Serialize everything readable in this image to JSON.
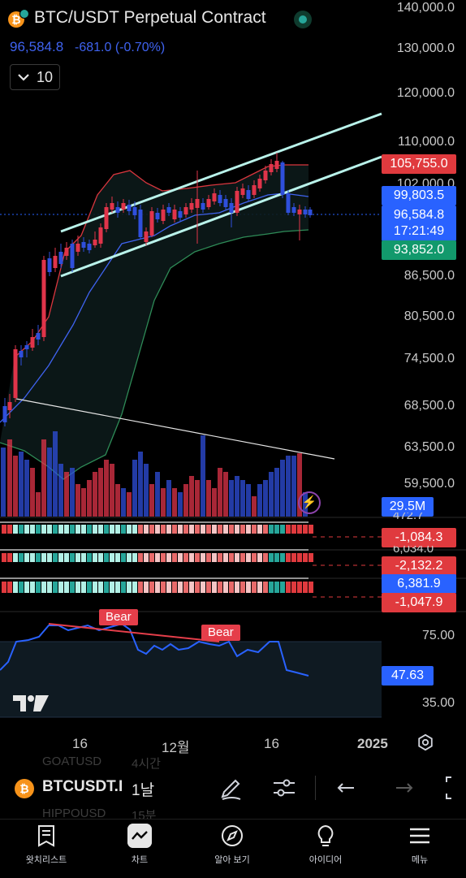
{
  "header": {
    "title": "BTC/USDT Perpetual Contract",
    "price": "96,584.8",
    "change": "-681.0 (-0.70%)",
    "collapse_count": "10"
  },
  "price_axis": [
    "140,000.0",
    "130,000.0",
    "120,000.0",
    "110,000.0",
    "102,000.0",
    "86,500.0",
    "80,500.0",
    "74,500.0",
    "68,500.0",
    "63,500.0",
    "59,500.0"
  ],
  "price_tags": {
    "upper_band": "105,755.0",
    "mid_band": "99,803.5",
    "last_price": "96,584.8",
    "countdown": "17:21:49",
    "lower_band": "93,852.0",
    "volume": "29.5M"
  },
  "oscillators": {
    "osc1": {
      "top": "472.7",
      "value": "-1,084.3"
    },
    "osc2": {
      "top": "6,034.0",
      "value": "-2,132.2"
    },
    "osc3": {
      "top": "6,381.9",
      "value": "-1,047.9"
    }
  },
  "rsi": {
    "levels": [
      "75.00",
      "35.00"
    ],
    "value": "47.63",
    "labels": [
      "Bear",
      "Bear"
    ]
  },
  "time_axis": [
    "16",
    "12월",
    "16",
    "2025"
  ],
  "ghost_list": [
    "GOATUSD",
    "4시간",
    "HIPPOUSD",
    "15분"
  ],
  "toolbar": {
    "symbol": "BTCUSDT.I",
    "interval": "1날"
  },
  "nav": [
    {
      "label": "왓치리스트",
      "icon": "watchlist-icon"
    },
    {
      "label": "차트",
      "icon": "chart-icon"
    },
    {
      "label": "알아 보기",
      "icon": "explore-icon"
    },
    {
      "label": "아이디어",
      "icon": "ideas-icon"
    },
    {
      "label": "메뉴",
      "icon": "menu-icon"
    }
  ],
  "colors": {
    "up": "#e0344a",
    "down": "#2f4fdc",
    "accent": "#2962ff",
    "bear": "#e53e4a",
    "band_green": "#2e8b57"
  }
}
